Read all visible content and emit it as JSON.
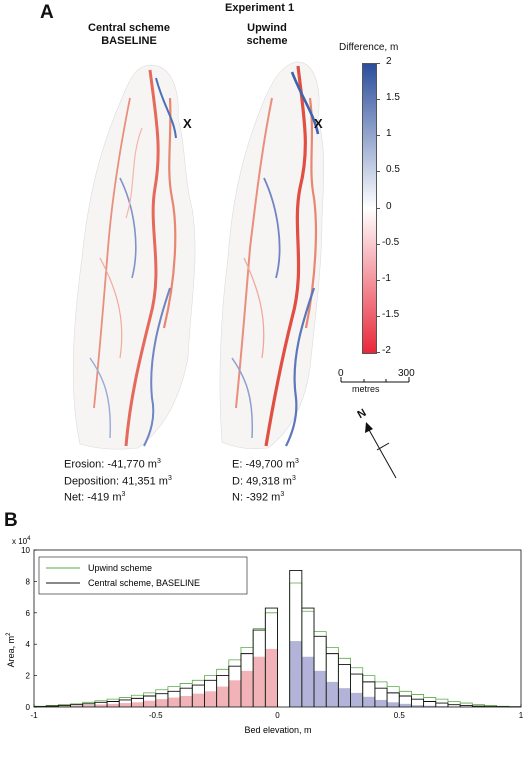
{
  "panel_a": {
    "letter": "A",
    "title": "Experiment 1",
    "left_map": {
      "line1": "Central scheme",
      "line2": "BASELINE",
      "marker": "X"
    },
    "right_map": {
      "line1": "Upwind",
      "line2": "scheme",
      "marker": "X"
    },
    "colorbar": {
      "title": "Difference, m",
      "ticks": [
        "2",
        "1.5",
        "1",
        "0.5",
        "0",
        "-0.5",
        "-1",
        "-1.5",
        "-2"
      ],
      "top_color": "#2b4e9c",
      "mid_color": "#ffffff",
      "bottom_color": "#e8283a"
    },
    "scale_bar": {
      "start": "0",
      "end": "300",
      "unit": "metres"
    },
    "north": {
      "label": "N"
    },
    "left_stats": {
      "erosion_label": "Erosion:",
      "erosion_value": "-41,770 m",
      "deposition_label": "Deposition:",
      "deposition_value": "41,351 m",
      "net_label": "Net:",
      "net_value": "-419 m",
      "exp": "3"
    },
    "right_stats": {
      "erosion_label": "E:",
      "erosion_value": "-49,700 m",
      "deposition_label": "D:",
      "deposition_value": "49,318 m",
      "net_label": "N:",
      "net_value": "-392 m",
      "exp": "3"
    }
  },
  "panel_b": {
    "letter": "B"
  },
  "chart_data": {
    "type": "bar",
    "multiplier": "x 10",
    "multiplier_exp": "4",
    "xlabel": "Bed elevation, m",
    "ylabel": "Area, m",
    "ylabel_exp": "2",
    "xlim": [
      -1,
      1
    ],
    "ylim": [
      0,
      10
    ],
    "xticks": [
      -1,
      -0.5,
      0,
      0.5,
      1
    ],
    "xtick_labels": [
      "-1",
      "-0.5",
      "0",
      "0.5",
      "1"
    ],
    "yticks": [
      0,
      2,
      4,
      6,
      8,
      10
    ],
    "ytick_labels": [
      "0",
      "2",
      "4",
      "6",
      "8",
      "10"
    ],
    "grid": false,
    "legend_position": "top-left",
    "fill_colors": {
      "erosion": "#f2b3b8",
      "deposition": "#b3b3d9"
    },
    "series": [
      {
        "name": "Upwind scheme",
        "color": "#5aaa46",
        "bin_edges": [
          -1,
          -0.95,
          -0.9,
          -0.85,
          -0.8,
          -0.75,
          -0.7,
          -0.65,
          -0.6,
          -0.55,
          -0.5,
          -0.45,
          -0.4,
          -0.35,
          -0.3,
          -0.25,
          -0.2,
          -0.15,
          -0.1,
          -0.05,
          0,
          0.05,
          0.1,
          0.15,
          0.2,
          0.25,
          0.3,
          0.35,
          0.4,
          0.45,
          0.5,
          0.55,
          0.6,
          0.65,
          0.7,
          0.75,
          0.8,
          0.85,
          0.9,
          0.95,
          1
        ],
        "values": [
          0.05,
          0.1,
          0.15,
          0.2,
          0.3,
          0.4,
          0.5,
          0.6,
          0.75,
          0.9,
          1.1,
          1.3,
          1.5,
          1.7,
          2.0,
          2.4,
          3.0,
          3.8,
          5.0,
          6.0,
          0,
          7.9,
          6.1,
          4.8,
          3.8,
          3.1,
          2.5,
          2.0,
          1.6,
          1.3,
          1.0,
          0.8,
          0.6,
          0.5,
          0.35,
          0.25,
          0.15,
          0.1,
          0.05,
          0.02
        ]
      },
      {
        "name": "Central scheme, BASELINE",
        "color": "#111111",
        "bin_edges": [
          -1,
          -0.95,
          -0.9,
          -0.85,
          -0.8,
          -0.75,
          -0.7,
          -0.65,
          -0.6,
          -0.55,
          -0.5,
          -0.45,
          -0.4,
          -0.35,
          -0.3,
          -0.25,
          -0.2,
          -0.15,
          -0.1,
          -0.05,
          0,
          0.05,
          0.1,
          0.15,
          0.2,
          0.25,
          0.3,
          0.35,
          0.4,
          0.45,
          0.5,
          0.55,
          0.6,
          0.65,
          0.7,
          0.75,
          0.8,
          0.85,
          0.9,
          0.95,
          1
        ],
        "values": [
          0.03,
          0.06,
          0.1,
          0.15,
          0.2,
          0.3,
          0.35,
          0.45,
          0.55,
          0.7,
          0.85,
          1.0,
          1.2,
          1.4,
          1.7,
          2.0,
          2.6,
          3.4,
          4.9,
          6.3,
          0,
          8.7,
          6.3,
          4.5,
          3.4,
          2.7,
          2.1,
          1.6,
          1.2,
          0.9,
          0.7,
          0.5,
          0.35,
          0.25,
          0.15,
          0.1,
          0.06,
          0.03,
          0.02,
          0.01
        ]
      }
    ],
    "filled_bins": {
      "bin_edges": [
        -1,
        -0.95,
        -0.9,
        -0.85,
        -0.8,
        -0.75,
        -0.7,
        -0.65,
        -0.6,
        -0.55,
        -0.5,
        -0.45,
        -0.4,
        -0.35,
        -0.3,
        -0.25,
        -0.2,
        -0.15,
        -0.1,
        -0.05,
        0,
        0.05,
        0.1,
        0.15,
        0.2,
        0.25,
        0.3,
        0.35,
        0.4,
        0.45,
        0.5,
        0.55,
        0.6,
        0.65,
        0.7,
        0.75,
        0.8,
        0.85,
        0.9,
        0.95,
        1
      ],
      "values": [
        0.02,
        0.04,
        0.06,
        0.08,
        0.12,
        0.16,
        0.2,
        0.25,
        0.3,
        0.4,
        0.5,
        0.6,
        0.7,
        0.85,
        1.0,
        1.3,
        1.7,
        2.3,
        3.2,
        3.7,
        0,
        4.2,
        3.2,
        2.3,
        1.6,
        1.2,
        0.9,
        0.65,
        0.45,
        0.3,
        0.2,
        0.12,
        0.08,
        0.05,
        0.03,
        0.02,
        0.01,
        0.01,
        0,
        0
      ]
    }
  }
}
